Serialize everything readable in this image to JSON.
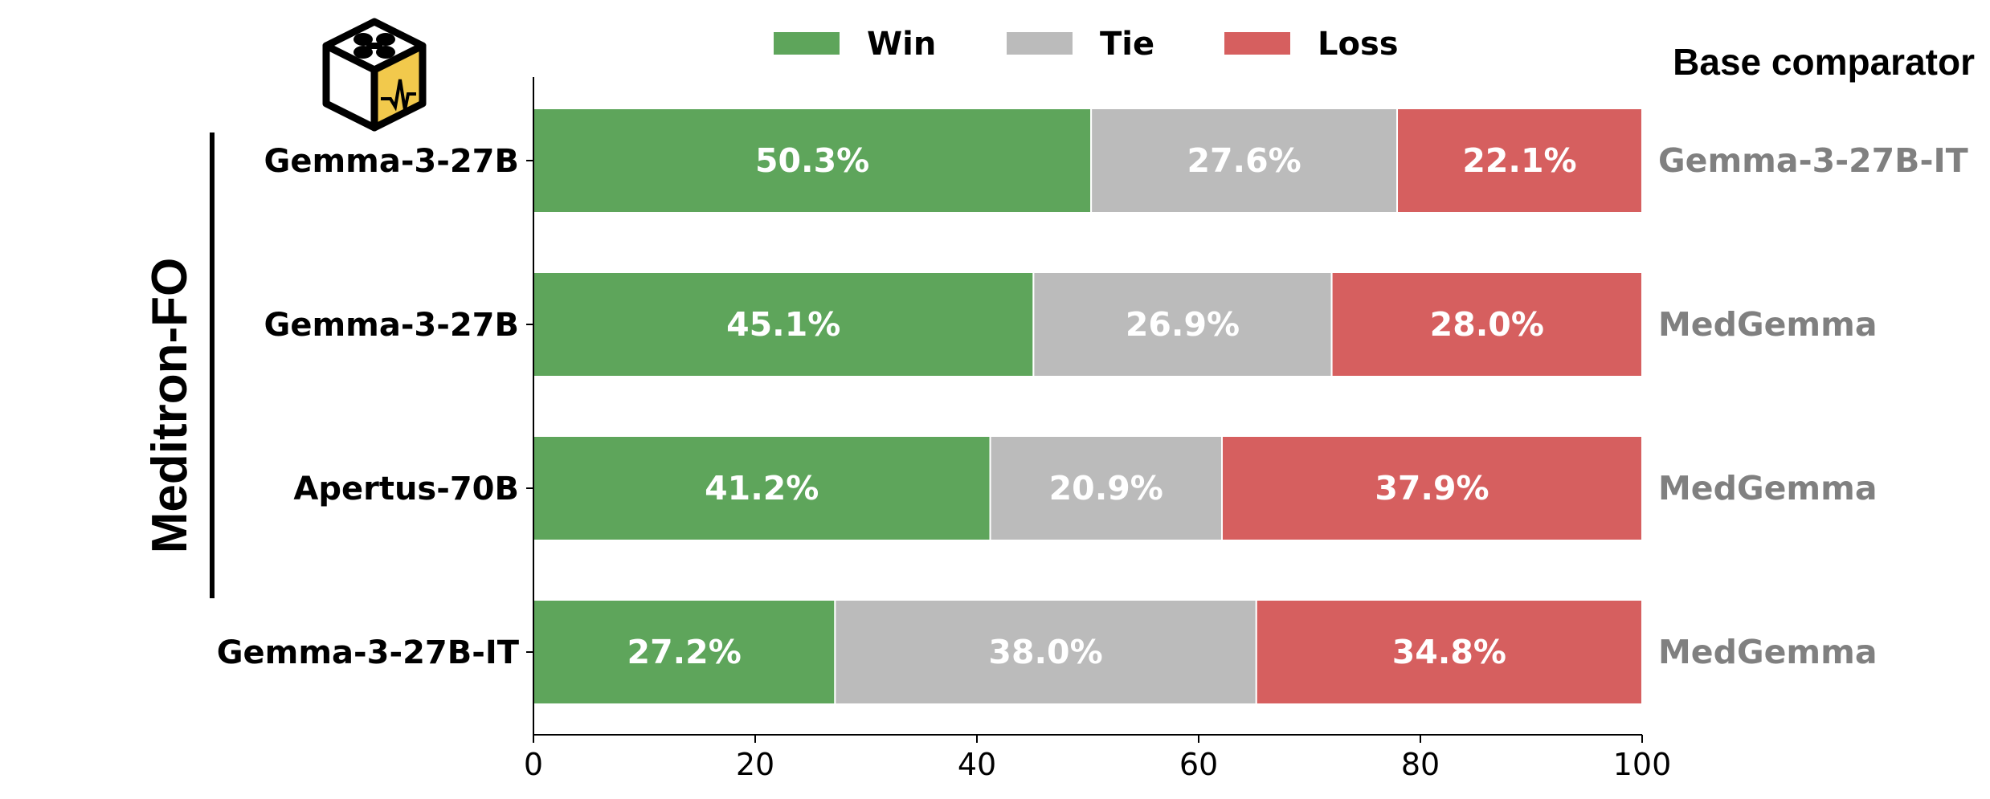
{
  "chart_data": {
    "type": "bar",
    "orientation": "horizontal",
    "stacked": true,
    "categories": [
      "Gemma-3-27B",
      "Gemma-3-27B",
      "Apertus-70B",
      "Gemma-3-27B-IT"
    ],
    "series": [
      {
        "name": "Win",
        "color": "#5ea55b",
        "values": [
          50.3,
          45.1,
          41.2,
          27.2
        ]
      },
      {
        "name": "Tie",
        "color": "#bbbbbb",
        "values": [
          27.6,
          26.9,
          20.9,
          38.0
        ]
      },
      {
        "name": "Loss",
        "color": "#d65f5f",
        "values": [
          22.1,
          28.0,
          37.9,
          34.8
        ]
      }
    ],
    "value_labels": [
      [
        "50.3%",
        "27.6%",
        "22.1%"
      ],
      [
        "45.1%",
        "26.9%",
        "28.0%"
      ],
      [
        "41.2%",
        "20.9%",
        "37.9%"
      ],
      [
        "27.2%",
        "38.0%",
        "34.8%"
      ]
    ],
    "comparators": [
      "Gemma-3-27B-IT",
      "MedGemma",
      "MedGemma",
      "MedGemma"
    ],
    "comparator_header": "Base comparator",
    "group_label": "Meditron-FO",
    "xlim": [
      0,
      100
    ],
    "xticks": [
      0,
      20,
      40,
      60,
      80,
      100
    ],
    "xlabel": "",
    "ylabel": "",
    "legend": "top",
    "grid": false
  },
  "icons": {
    "logo": "meditron-dice-logo-icon"
  },
  "colors": {
    "comparator_text": "#808080",
    "bar_text": "#ffffff"
  }
}
